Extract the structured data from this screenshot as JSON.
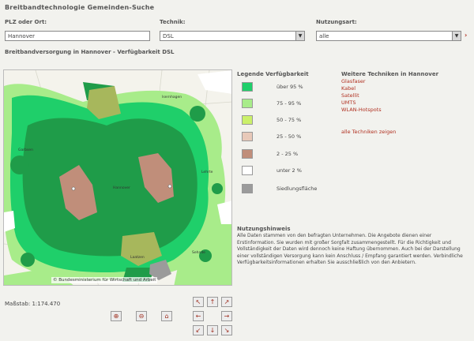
{
  "page": {
    "title": "Breitbandtechnologie Gemeinden-Suche"
  },
  "search": {
    "place_label": "PLZ oder Ort:",
    "place_value": "Hannover",
    "tech_label": "Technik:",
    "tech_value": "DSL",
    "usage_label": "Nutzungsart:",
    "usage_value": "alle"
  },
  "map": {
    "heading": "Breitbandversorgung in Hannover - Verfügbarkeit DSL",
    "copyright": "© Bundesministerium für Wirtschaft und Arbeit",
    "scale": "Maßstab: 1:174.470",
    "place_names": [
      "Hannover",
      "Garbsen",
      "Laatzen",
      "Isernhagen",
      "Lehrte",
      "Sehnde"
    ]
  },
  "legend": {
    "title": "Legende Verfügbarkeit",
    "items": [
      {
        "label": "über 95 %",
        "color": "#1fcf6a"
      },
      {
        "label": "75 - 95 %",
        "color": "#a8ec8a"
      },
      {
        "label": "50 - 75 %",
        "color": "#cbf06a"
      },
      {
        "label": "25 - 50 %",
        "color": "#e8c9b9"
      },
      {
        "label": "2 - 25 %",
        "color": "#c08e7a"
      },
      {
        "label": "unter 2 %",
        "color": "#ffffff"
      },
      {
        "label": "Siedlungsfläche",
        "color": "#9b9b9b"
      }
    ]
  },
  "technologies": {
    "title": "Weitere Techniken in Hannover",
    "links": [
      "Glasfaser",
      "Kabel",
      "Satellit",
      "UMTS",
      "WLAN-Hotspots"
    ],
    "all_link": "alle Techniken zeigen"
  },
  "notes": {
    "title": "Nutzungshinweis",
    "body": "Alle Daten stammen von den befragten Unternehmen. Die Angebote dienen einer Erstinformation. Sie wurden mit großer Sorgfalt zusammengestellt. Für die Richtigkeit und Vollständigkeit der Daten wird dennoch keine Haftung übernommen. Auch bei der Darstellung einer vollständigen Versorgung kann kein Anschluss / Empfang garantiert werden. Verbindliche Verfügbarkeitsinformationen erhalten Sie ausschließlich von den Anbietern."
  },
  "tools": {
    "zoom_in": "zoom-in-icon",
    "zoom_out": "zoom-out-icon",
    "zoom_full": "zoom-full-icon",
    "pan": "pan-arrow-icons"
  }
}
